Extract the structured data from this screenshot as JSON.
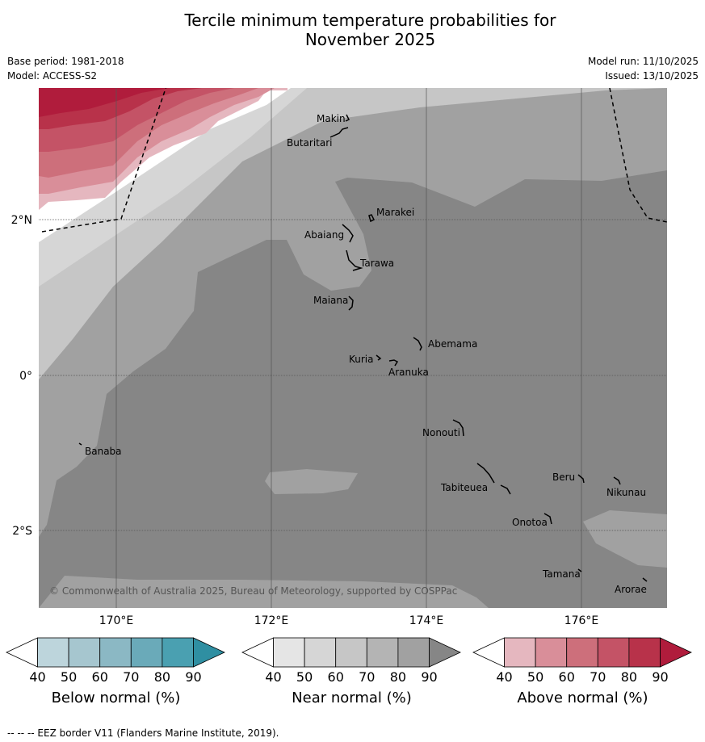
{
  "title": {
    "line1": "Tercile minimum temperature probabilities for",
    "line2": "November 2025"
  },
  "meta": {
    "base_period": "Base period: 1981-2018",
    "model": "Model: ACCESS-S2",
    "model_run": "Model run: 11/10/2025",
    "issued": "Issued: 13/10/2025"
  },
  "map": {
    "lat_labels": [
      "2°N",
      "0°",
      "2°S"
    ],
    "lon_labels": [
      "170°E",
      "172°E",
      "174°E",
      "176°E"
    ],
    "islands": [
      "Makin",
      "Butaritari",
      "Marakei",
      "Abaiang",
      "Tarawa",
      "Maiana",
      "Abemama",
      "Kuria",
      "Aranuka",
      "Nonouti",
      "Banaba",
      "Beru",
      "Nikunau",
      "Tabiteuea",
      "Onotoa",
      "Tamana",
      "Arorae"
    ],
    "copyright": "© Commonwealth of Australia 2025, Bureau of Meteorology, supported by COSPPac"
  },
  "colorbars": [
    {
      "label": "Below normal (%)",
      "ticks": [
        "40",
        "50",
        "60",
        "70",
        "80",
        "90"
      ],
      "colors": [
        "#ffffff",
        "#bdd5dc",
        "#a6c6cf",
        "#8bb8c4",
        "#6aaab9",
        "#4aa0b1",
        "#2f8fa2"
      ]
    },
    {
      "label": "Near normal (%)",
      "ticks": [
        "40",
        "50",
        "60",
        "70",
        "80",
        "90"
      ],
      "colors": [
        "#ffffff",
        "#e5e5e5",
        "#d6d6d6",
        "#c6c6c6",
        "#b4b4b4",
        "#a1a1a1",
        "#868686"
      ]
    },
    {
      "label": "Above normal (%)",
      "ticks": [
        "40",
        "50",
        "60",
        "70",
        "80",
        "90"
      ],
      "colors": [
        "#ffffff",
        "#e5b7bf",
        "#d98e99",
        "#cd6f7b",
        "#c45366",
        "#b8324a",
        "#b01c3c"
      ]
    }
  ],
  "footer": {
    "legend_text": "--  --  -- EEZ border V11 (Flanders Marine Institute, 2019)."
  }
}
